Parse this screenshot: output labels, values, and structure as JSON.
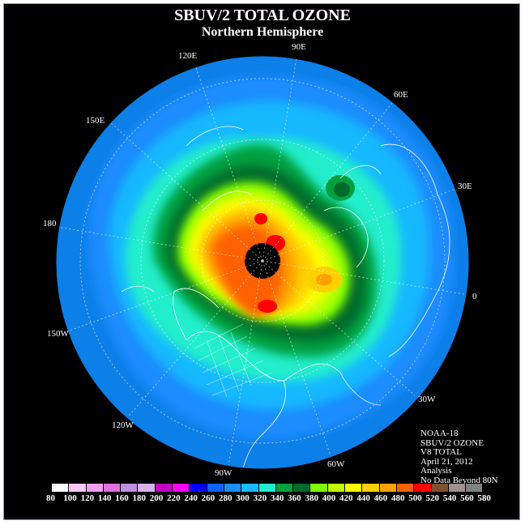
{
  "title": "SBUV/2 TOTAL OZONE",
  "subtitle": "Northern Hemisphere",
  "longitude_labels": [
    "90E",
    "60E",
    "30E",
    "0",
    "30W",
    "60W",
    "90W",
    "120W",
    "150W",
    "180",
    "150E",
    "120E"
  ],
  "info": {
    "satellite": "NOAA-18",
    "product": "SBUV/2 OZONE",
    "version": "V8 TOTAL",
    "date": "April 21, 2012",
    "type": "Analysis",
    "note": "No Data Beyond 80N"
  },
  "colorbar": {
    "ticks": [
      "80",
      "100",
      "120",
      "140",
      "160",
      "180",
      "200",
      "220",
      "240",
      "260",
      "280",
      "300",
      "320",
      "340",
      "360",
      "380",
      "400",
      "420",
      "440",
      "460",
      "480",
      "500",
      "520",
      "540",
      "560",
      "580"
    ],
    "colors": [
      "#ffffff",
      "#f8c8f8",
      "#f0a0f0",
      "#e070e0",
      "#c090e0",
      "#d8b0f0",
      "#c000c0",
      "#ff00ff",
      "#0000ff",
      "#1060ff",
      "#1a8cff",
      "#19b8ff",
      "#22eecc",
      "#00a040",
      "#006a2a",
      "#80ff00",
      "#c0ff00",
      "#ffff00",
      "#ffd000",
      "#ffa000",
      "#ff6000",
      "#ff0000",
      "#805030",
      "#a09090",
      "#808080",
      "#606060"
    ]
  },
  "colors": {
    "ocean_outer": "#0d7fe8",
    "band_260": "#1a8cff",
    "band_280": "#19b8ff",
    "band_300": "#22eecc",
    "band_320": "#00a040",
    "band_340": "#006a2a",
    "band_380": "#80ff00",
    "band_400": "#c0ff00",
    "band_420": "#ffff00",
    "band_440": "#ffd000",
    "band_460": "#ffa000",
    "band_480": "#ff6000",
    "band_500": "#ff0000",
    "no_data": "#000000"
  }
}
